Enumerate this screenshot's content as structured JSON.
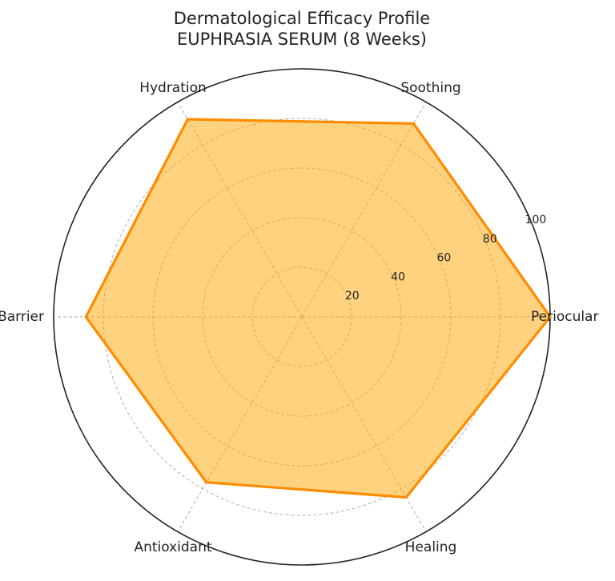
{
  "chart_data": {
    "type": "radar",
    "title": "Dermatological Efficacy Profile",
    "subtitle": "EUPHRASIA SERUM (8 Weeks)",
    "categories": [
      "Periocular",
      "Soothing",
      "Hydration",
      "Barrier",
      "Antioxidant",
      "Healing"
    ],
    "series": [
      {
        "values": [
          100,
          90,
          92,
          87,
          77,
          84
        ]
      }
    ],
    "rlim": [
      0,
      100
    ],
    "rticks": [
      20,
      40,
      60,
      80,
      100
    ],
    "grid": true,
    "colors": {
      "line": "#ff8c00",
      "fill": "#ffa500",
      "fill_opacity": 0.5,
      "grid": "#b0b0b0",
      "outer": "#222222"
    }
  }
}
